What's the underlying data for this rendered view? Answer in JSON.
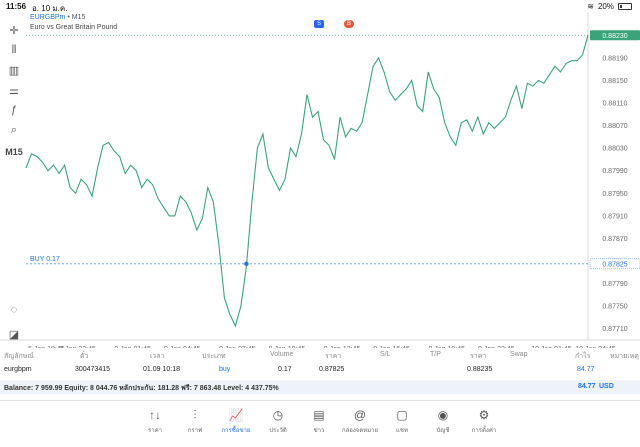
{
  "status": {
    "time": "11:56",
    "date": "อ. 10 ม.ค.",
    "battery": "20%"
  },
  "toolbar": {
    "timeframe": "M15"
  },
  "chart_header": {
    "symbol": "EURGBPm",
    "separator": "•",
    "timeframe": "M15",
    "description": "Euro vs Great Britain Pound"
  },
  "chart_data": {
    "type": "line",
    "color": "#3aa37a",
    "current_price_label": "0.88230",
    "buy_line": {
      "label": "BUY 0.17",
      "price": 0.87825,
      "price_label": "0.87825"
    },
    "ylim": [
      0.8769,
      0.8825
    ],
    "xlim": [
      0,
      102
    ],
    "y_ticks": [
      "0.88190",
      "0.88150",
      "0.88110",
      "0.88070",
      "0.88030",
      "0.87990",
      "0.87950",
      "0.87910",
      "0.87870",
      "0.87830",
      "0.87790",
      "0.87750",
      "0.87710"
    ],
    "y_tick_values": [
      0.8819,
      0.8815,
      0.8811,
      0.8807,
      0.8803,
      0.8799,
      0.8795,
      0.8791,
      0.8787,
      0.8783,
      0.8779,
      0.8775,
      0.8771
    ],
    "x_ticks": [
      "6 Jan 19:45",
      "8 Jan 22:45",
      "9 Jan 01:45",
      "9 Jan 04:45",
      "9 Jan 07:45",
      "9 Jan 10:45",
      "9 Jan 13:45",
      "9 Jan 16:45",
      "9 Jan 19:45",
      "9 Jan 22:45",
      "10 Jan 01:45",
      "10 Jan 04:45"
    ],
    "x_tick_positions": [
      0,
      9,
      19,
      28,
      38,
      47,
      57,
      66,
      76,
      85,
      95,
      103
    ],
    "series": [
      {
        "values": [
          0.87995,
          0.8802,
          0.88015,
          0.88005,
          0.8799,
          0.88,
          0.87985,
          0.88,
          0.8796,
          0.8795,
          0.87975,
          0.87965,
          0.87945,
          0.87995,
          0.88035,
          0.8804,
          0.88025,
          0.88015,
          0.87985,
          0.88,
          0.8799,
          0.8796,
          0.87975,
          0.87965,
          0.8794,
          0.87925,
          0.8791,
          0.8791,
          0.87945,
          0.87935,
          0.87915,
          0.87885,
          0.87905,
          0.8796,
          0.87935,
          0.8786,
          0.87765,
          0.87735,
          0.87715,
          0.8775,
          0.8782,
          0.87935,
          0.8803,
          0.88055,
          0.87995,
          0.87975,
          0.87955,
          0.87975,
          0.8803,
          0.88015,
          0.88055,
          0.88125,
          0.88085,
          0.88095,
          0.88045,
          0.88035,
          0.8801,
          0.88085,
          0.8805,
          0.88065,
          0.8806,
          0.88075,
          0.88125,
          0.88175,
          0.8819,
          0.88165,
          0.8813,
          0.88115,
          0.88125,
          0.88135,
          0.8815,
          0.88105,
          0.88095,
          0.88165,
          0.88135,
          0.8812,
          0.88075,
          0.8805,
          0.88035,
          0.88075,
          0.8808,
          0.8806,
          0.88085,
          0.88055,
          0.88075,
          0.88065,
          0.88075,
          0.88085,
          0.88115,
          0.8814,
          0.881,
          0.88145,
          0.8814,
          0.8815,
          0.88145,
          0.8816,
          0.88175,
          0.88165,
          0.8818,
          0.88185,
          0.88185,
          0.88195,
          0.8823
        ]
      }
    ]
  },
  "table": {
    "headers": [
      "สัญลักษณ์",
      "ตั๋ว",
      "เวลา",
      "ประเภท",
      "Volume",
      "ราคา",
      "S/L",
      "T/P",
      "ราคา",
      "Swap",
      "กำไร",
      "หมายเหตุ"
    ],
    "rows": [
      [
        "eurgbpm",
        "300473415",
        "01.09 10:18",
        "buy",
        "0.17",
        "0.87825",
        "",
        "",
        "0.88235",
        "",
        "84.77",
        ""
      ]
    ]
  },
  "balance": {
    "summary": "Balance: 7 959.99  Equity: 8 044.76  หลักประกัน: 181.28  ฟรี: 7 863.48  Level: 4 437.75%",
    "total": "84.77",
    "currency": "USD"
  },
  "nav": [
    {
      "label": "ราคา",
      "icon": "↑↓"
    },
    {
      "label": "กราฟ",
      "icon": "⫶"
    },
    {
      "label": "การซื้อขาย",
      "icon": "📈"
    },
    {
      "label": "ประวัติ",
      "icon": "◷"
    },
    {
      "label": "ข่าว",
      "icon": "▤"
    },
    {
      "label": "กล่องจดหมาย",
      "icon": "@"
    },
    {
      "label": "แชท",
      "icon": "▢"
    },
    {
      "label": "บัญชี",
      "icon": "◉"
    },
    {
      "label": "การตั้งค่า",
      "icon": "⚙"
    }
  ]
}
